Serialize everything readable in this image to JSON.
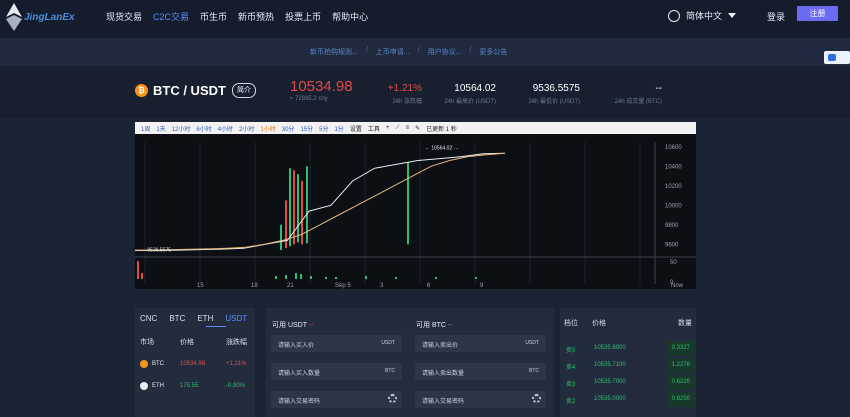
{
  "brand": {
    "name": "JingLanEx"
  },
  "nav": [
    "现货交易",
    "C2C交易",
    "币生币",
    "新币预热",
    "投票上币",
    "帮助中心"
  ],
  "nav_active": "C2C交易",
  "header": {
    "language": "简体中文",
    "login": "登录",
    "register": "注册"
  },
  "notices": [
    "新币抢购规则...",
    "上币申请...",
    "用户协议...",
    "更多公告"
  ],
  "ticker": {
    "pair": "BTC / USDT",
    "intro": "简介",
    "last_price": "10534.98",
    "cny": "≈ 72885.2 cny",
    "change": "+1.21%",
    "change_label": "24h 涨跌幅",
    "high": "10564.02",
    "high_label": "24h 最高价 (USDT)",
    "low": "9536.5575",
    "low_label": "24h 最低价 (USDT)",
    "volume": "--",
    "volume_label": "24h 成交量 (BTC)"
  },
  "chart_toolbar": {
    "periods": [
      "1周",
      "1天",
      "12小时",
      "6小时",
      "4小时",
      "2小时",
      "1小时",
      "30分",
      "15分",
      "5分",
      "1分"
    ],
    "active_period": "1小时",
    "settings": "设置",
    "tools": "工具",
    "status": "已更新 1 秒"
  },
  "chart_data": {
    "type": "line",
    "x_ticks": [
      "15",
      "18",
      "21",
      "Sep 5",
      "3",
      "6",
      "9",
      "Now"
    ],
    "y_ticks": [
      "10600",
      "10400",
      "10200",
      "10000",
      "9800",
      "9600"
    ],
    "volume_ticks": [
      "50",
      "0"
    ],
    "annotations": [
      "10564.02",
      "9536.5575"
    ],
    "series": [
      {
        "color": "#e8ecf3",
        "values": [
          9536,
          9536,
          9540,
          9545,
          9550,
          9560,
          9600,
          9640,
          9940,
          10000,
          10250,
          10380,
          10420,
          10460,
          10480,
          10500,
          10530,
          10535
        ]
      },
      {
        "color": "#e8b87a",
        "values": [
          9540,
          9540,
          9545,
          9548,
          9552,
          9560,
          9570,
          9600,
          9640,
          9700,
          9800,
          9900,
          10000,
          10100,
          10200,
          10300,
          10400,
          10460,
          10500,
          10520,
          10535
        ]
      }
    ]
  },
  "markets": {
    "tabs": [
      "CNC",
      "BTC",
      "ETH",
      "USDT"
    ],
    "active_tab": "USDT",
    "headers": [
      "市场",
      "价格",
      "涨跌幅"
    ],
    "rows": [
      {
        "coin": "BTC",
        "price": "10534.98",
        "change": "+1.21%",
        "up": true
      },
      {
        "coin": "ETH",
        "price": "175.55",
        "change": "-0.90%",
        "up": false
      }
    ]
  },
  "buy": {
    "title": "可用 USDT",
    "value": "--",
    "price_ph": "请输入买入价",
    "price_unit": "USDT",
    "amount_ph": "请输入买入数量",
    "amount_unit": "BTC",
    "pwd_ph": "请输入交易密码"
  },
  "sell": {
    "title": "可用 BTC",
    "value": "--",
    "price_ph": "请输入卖出价",
    "price_unit": "USDT",
    "amount_ph": "请输入卖出数量",
    "amount_unit": "BTC",
    "pwd_ph": "请输入交易密码"
  },
  "order_book": {
    "headers": [
      "档位",
      "价格",
      "数量"
    ],
    "rows": [
      {
        "level": "卖5",
        "price": "10535.8900",
        "amount": "0.3327",
        "depth": 0.22
      },
      {
        "level": "卖4",
        "price": "10535.7100",
        "amount": "1.2278",
        "depth": 0.22
      },
      {
        "level": "卖3",
        "price": "10535.7000",
        "amount": "0.6220",
        "depth": 0.22
      },
      {
        "level": "卖2",
        "price": "10535.0000",
        "amount": "0.8250",
        "depth": 0.22
      }
    ]
  }
}
